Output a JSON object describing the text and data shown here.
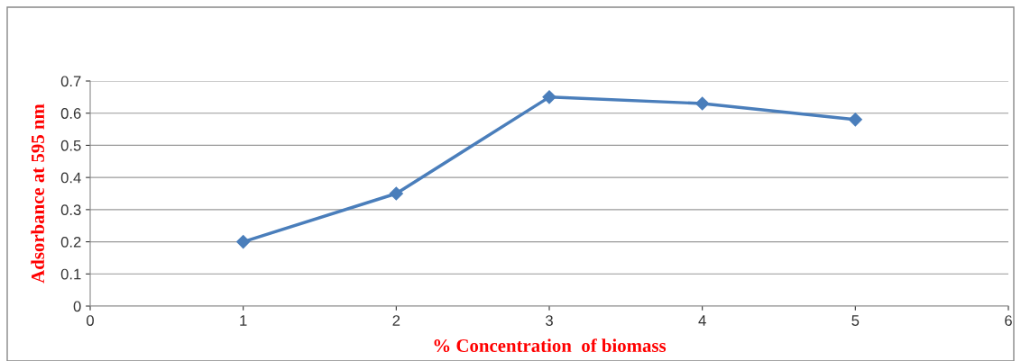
{
  "chart_data": {
    "type": "line",
    "xlabel": "% Concentration  of biomass",
    "ylabel": "Adsorbance at 595 nm",
    "x": [
      1,
      2,
      3,
      4,
      5
    ],
    "series": [
      {
        "color": "#4a7ebb",
        "values": [
          0.2,
          0.35,
          0.65,
          0.63,
          0.58
        ]
      }
    ],
    "xlim": [
      0,
      6
    ],
    "xticks": [
      0,
      1,
      2,
      3,
      4,
      5,
      6
    ],
    "ylim": [
      0,
      0.7
    ],
    "yticks": [
      0,
      0.1,
      0.2,
      0.3,
      0.4,
      0.5,
      0.6,
      0.7
    ],
    "grid": "y",
    "marker": "diamond",
    "line_style": "solid",
    "legend": false
  }
}
